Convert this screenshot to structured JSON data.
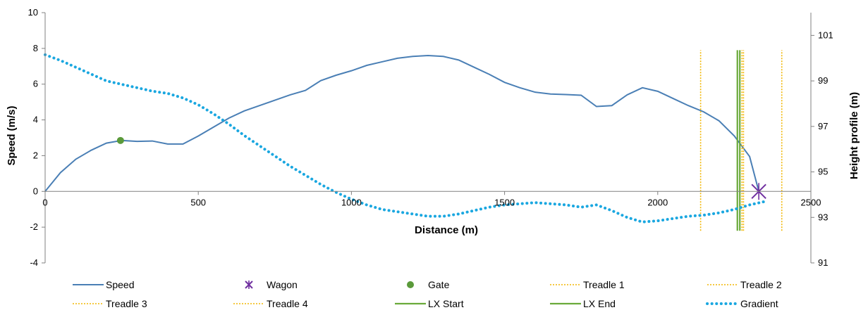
{
  "chart_data": {
    "type": "line",
    "xlabel": "Distance (m)",
    "ylabel": "Speed  (m/s)",
    "y2label": "Height profile (m)",
    "xlim": [
      0,
      2500
    ],
    "ylim": [
      -4,
      10
    ],
    "y2lim": [
      91,
      102
    ],
    "xticks": [
      "0",
      "500",
      "1000",
      "1500",
      "2000",
      "2500"
    ],
    "yticks": [
      "-4",
      "-2",
      "0",
      "2",
      "4",
      "6",
      "8",
      "10"
    ],
    "y2ticks": [
      "91",
      "93",
      "95",
      "97",
      "99",
      "101"
    ],
    "grid": false,
    "legend_position": "bottom",
    "colors": {
      "speed": "#4a7fb5",
      "wagon": "#7030a0",
      "gate": "#5a9a3a",
      "treadle": "#f2b705",
      "lx": "#6aaa3a",
      "gradient": "#1aa7e0"
    },
    "series": [
      {
        "name": "Speed",
        "kind": "line",
        "axis": "left",
        "x": [
          0,
          50,
          100,
          150,
          200,
          250,
          300,
          350,
          400,
          450,
          500,
          550,
          600,
          650,
          700,
          750,
          800,
          850,
          900,
          950,
          1000,
          1050,
          1100,
          1150,
          1200,
          1250,
          1300,
          1350,
          1400,
          1450,
          1500,
          1550,
          1600,
          1650,
          1700,
          1750,
          1800,
          1850,
          1900,
          1950,
          2000,
          2050,
          2100,
          2150,
          2200,
          2250,
          2300,
          2330
        ],
        "y": [
          0,
          1.05,
          1.8,
          2.3,
          2.7,
          2.85,
          2.8,
          2.82,
          2.65,
          2.65,
          3.1,
          3.6,
          4.1,
          4.5,
          4.8,
          5.1,
          5.4,
          5.65,
          6.2,
          6.5,
          6.75,
          7.05,
          7.25,
          7.45,
          7.55,
          7.6,
          7.55,
          7.35,
          6.95,
          6.55,
          6.1,
          5.8,
          5.55,
          5.45,
          5.42,
          5.38,
          4.75,
          4.8,
          5.4,
          5.8,
          5.6,
          5.2,
          4.8,
          4.45,
          3.95,
          3.1,
          1.95,
          0
        ]
      },
      {
        "name": "Wagon",
        "kind": "marker",
        "axis": "left",
        "x": [
          2330
        ],
        "y": [
          0
        ]
      },
      {
        "name": "Gate",
        "kind": "marker",
        "axis": "left",
        "x": [
          246
        ],
        "y": [
          2.85
        ]
      },
      {
        "name": "Treadle 1",
        "kind": "vline",
        "x": 2140,
        "y": [
          -2.2,
          7.9
        ]
      },
      {
        "name": "Treadle 2",
        "kind": "vline",
        "x": 2275,
        "y": [
          -2.2,
          7.9
        ]
      },
      {
        "name": "Treadle 3",
        "kind": "vline",
        "x": 2280,
        "y": [
          -2.2,
          7.9
        ]
      },
      {
        "name": "Treadle 4",
        "kind": "vline",
        "x": 2405,
        "y": [
          -2.2,
          7.9
        ]
      },
      {
        "name": "LX Start",
        "kind": "vline",
        "x": 2260,
        "y": [
          -2.2,
          7.9
        ]
      },
      {
        "name": "LX End",
        "kind": "vline",
        "x": 2268,
        "y": [
          -2.2,
          7.9
        ]
      },
      {
        "name": "Gradient",
        "kind": "dotted",
        "axis": "right",
        "x": [
          0,
          50,
          100,
          150,
          200,
          250,
          300,
          350,
          400,
          450,
          500,
          550,
          600,
          650,
          700,
          750,
          800,
          850,
          900,
          950,
          1000,
          1050,
          1100,
          1150,
          1200,
          1250,
          1300,
          1350,
          1400,
          1450,
          1500,
          1550,
          1600,
          1650,
          1700,
          1750,
          1800,
          1850,
          1900,
          1950,
          2000,
          2050,
          2100,
          2150,
          2200,
          2250,
          2300,
          2350
        ],
        "y": [
          100.15,
          99.9,
          99.6,
          99.3,
          99.0,
          98.85,
          98.7,
          98.55,
          98.45,
          98.25,
          97.95,
          97.55,
          97.1,
          96.6,
          96.15,
          95.7,
          95.25,
          94.85,
          94.45,
          94.1,
          93.8,
          93.55,
          93.35,
          93.25,
          93.15,
          93.05,
          93.05,
          93.15,
          93.3,
          93.45,
          93.55,
          93.6,
          93.65,
          93.6,
          93.55,
          93.45,
          93.55,
          93.3,
          93.0,
          92.8,
          92.85,
          92.95,
          93.05,
          93.1,
          93.2,
          93.35,
          93.55,
          93.7
        ]
      }
    ]
  }
}
